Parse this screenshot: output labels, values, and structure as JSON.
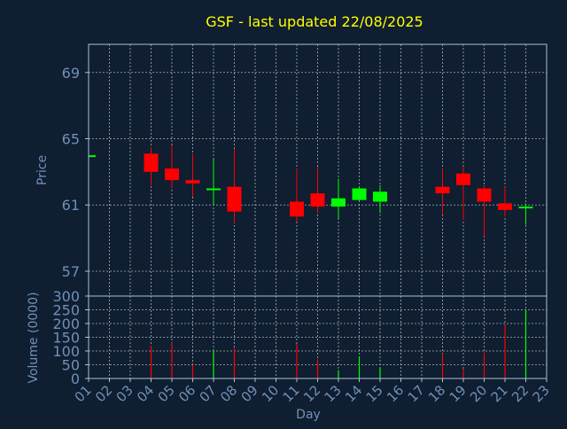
{
  "chart_data": {
    "type": "candlestick",
    "title": "GSF - last updated 22/08/2025",
    "title_color": "#ffff00",
    "background_color": "#0f1e30",
    "axis_color": "#a8c0e0",
    "label_color": "#7090b8",
    "up_color": "#00ff00",
    "down_color": "#ff0000",
    "grid": true,
    "xlabel": "Day",
    "x_ticks": [
      "01",
      "02",
      "03",
      "04",
      "05",
      "06",
      "07",
      "08",
      "09",
      "10",
      "11",
      "12",
      "13",
      "14",
      "15",
      "16",
      "17",
      "18",
      "19",
      "20",
      "21",
      "22",
      "23"
    ],
    "price_panel": {
      "ylabel": "Price",
      "ylim": [
        55.5,
        70.7
      ],
      "y_ticks": [
        "57",
        "61",
        "65",
        "69"
      ]
    },
    "volume_panel": {
      "ylabel": "Volume (0000)",
      "ylim": [
        0,
        300
      ],
      "y_ticks": [
        "0",
        "50",
        "100",
        "150",
        "200",
        "250",
        "300"
      ]
    },
    "candles": [
      {
        "day": 1,
        "open": 64.0,
        "close": 64.0,
        "high": 64.0,
        "low": 64.0,
        "volume": 0
      },
      {
        "day": 4,
        "open": 64.1,
        "close": 63.0,
        "high": 64.5,
        "low": 62.2,
        "volume": 120
      },
      {
        "day": 5,
        "open": 63.2,
        "close": 62.5,
        "high": 64.6,
        "low": 62.0,
        "volume": 130
      },
      {
        "day": 6,
        "open": 62.5,
        "close": 62.3,
        "high": 64.1,
        "low": 61.5,
        "volume": 50
      },
      {
        "day": 7,
        "open": 62.0,
        "close": 62.0,
        "high": 63.8,
        "low": 61.0,
        "volume": 105
      },
      {
        "day": 8,
        "open": 62.1,
        "close": 60.6,
        "high": 64.4,
        "low": 59.9,
        "volume": 110
      },
      {
        "day": 11,
        "open": 61.2,
        "close": 60.3,
        "high": 63.2,
        "low": 60.0,
        "volume": 125
      },
      {
        "day": 12,
        "open": 61.7,
        "close": 60.9,
        "high": 63.3,
        "low": 60.5,
        "volume": 70
      },
      {
        "day": 13,
        "open": 60.9,
        "close": 61.4,
        "high": 62.6,
        "low": 60.2,
        "volume": 30
      },
      {
        "day": 14,
        "open": 61.3,
        "close": 62.0,
        "high": 62.1,
        "low": 61.2,
        "volume": 80
      },
      {
        "day": 15,
        "open": 61.2,
        "close": 61.8,
        "high": 62.2,
        "low": 60.5,
        "volume": 40
      },
      {
        "day": 18,
        "open": 62.1,
        "close": 61.7,
        "high": 63.2,
        "low": 60.4,
        "volume": 90
      },
      {
        "day": 19,
        "open": 62.9,
        "close": 62.2,
        "high": 63.3,
        "low": 60.1,
        "volume": 35
      },
      {
        "day": 20,
        "open": 62.0,
        "close": 61.2,
        "high": 62.2,
        "low": 59.1,
        "volume": 95
      },
      {
        "day": 21,
        "open": 61.1,
        "close": 60.7,
        "high": 62.1,
        "low": 60.3,
        "volume": 195
      },
      {
        "day": 22,
        "open": 60.8,
        "close": 60.9,
        "high": 61.1,
        "low": 59.8,
        "volume": 250
      }
    ]
  }
}
